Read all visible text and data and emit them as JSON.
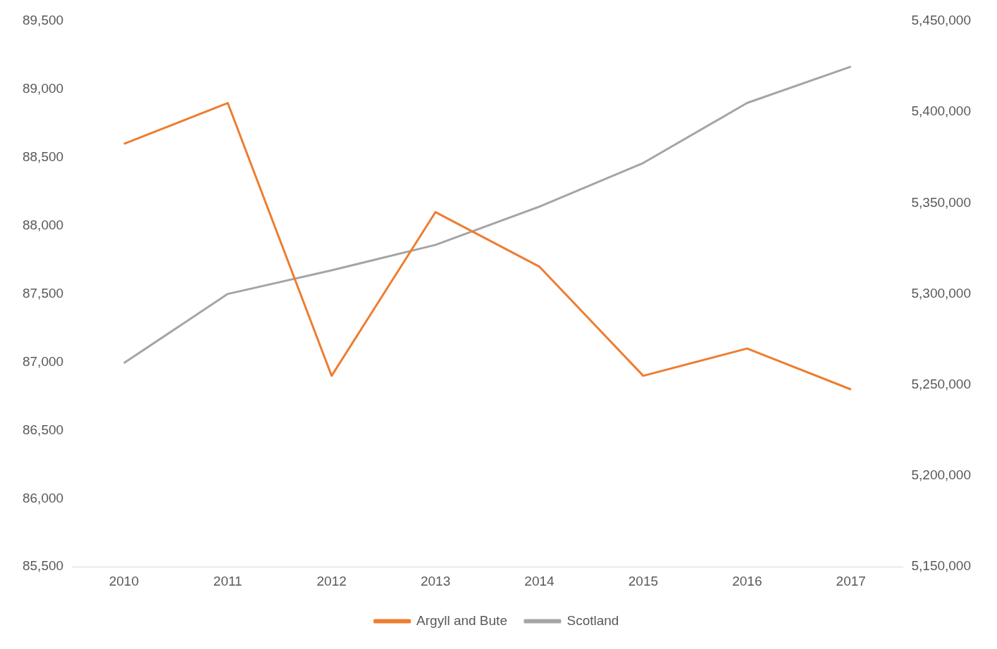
{
  "chart_data": {
    "type": "line",
    "categories": [
      "2010",
      "2011",
      "2012",
      "2013",
      "2014",
      "2015",
      "2016",
      "2017"
    ],
    "series": [
      {
        "name": "Argyll and Bute",
        "color": "#ed7d31",
        "values": [
          88600,
          88900,
          86900,
          88100,
          87700,
          86900,
          87100,
          86800
        ]
      },
      {
        "name": "Scotland",
        "color": "#a5a5a5",
        "axis": "y2",
        "values": [
          5262000,
          5300000,
          5313000,
          5327000,
          5348000,
          5372000,
          5405000,
          5425000
        ]
      }
    ],
    "ylim": [
      85500,
      89500
    ],
    "yticks": [
      {
        "value": 85500,
        "label": "85,500"
      },
      {
        "value": 86000,
        "label": "86,000"
      },
      {
        "value": 86500,
        "label": "86,500"
      },
      {
        "value": 87000,
        "label": "87,000"
      },
      {
        "value": 87500,
        "label": "87,500"
      },
      {
        "value": 88000,
        "label": "88,000"
      },
      {
        "value": 88500,
        "label": "88,500"
      },
      {
        "value": 89000,
        "label": "89,000"
      },
      {
        "value": 89500,
        "label": "89,500"
      }
    ],
    "y2lim": [
      5150000,
      5450000
    ],
    "y2ticks": [
      {
        "value": 5150000,
        "label": "5,150,000"
      },
      {
        "value": 5200000,
        "label": "5,200,000"
      },
      {
        "value": 5250000,
        "label": "5,250,000"
      },
      {
        "value": 5300000,
        "label": "5,300,000"
      },
      {
        "value": 5350000,
        "label": "5,350,000"
      },
      {
        "value": 5400000,
        "label": "5,400,000"
      },
      {
        "value": 5450000,
        "label": "5,450,000"
      }
    ],
    "grid": false,
    "legend": "bottom",
    "marker": "none",
    "line_style": "solid"
  }
}
